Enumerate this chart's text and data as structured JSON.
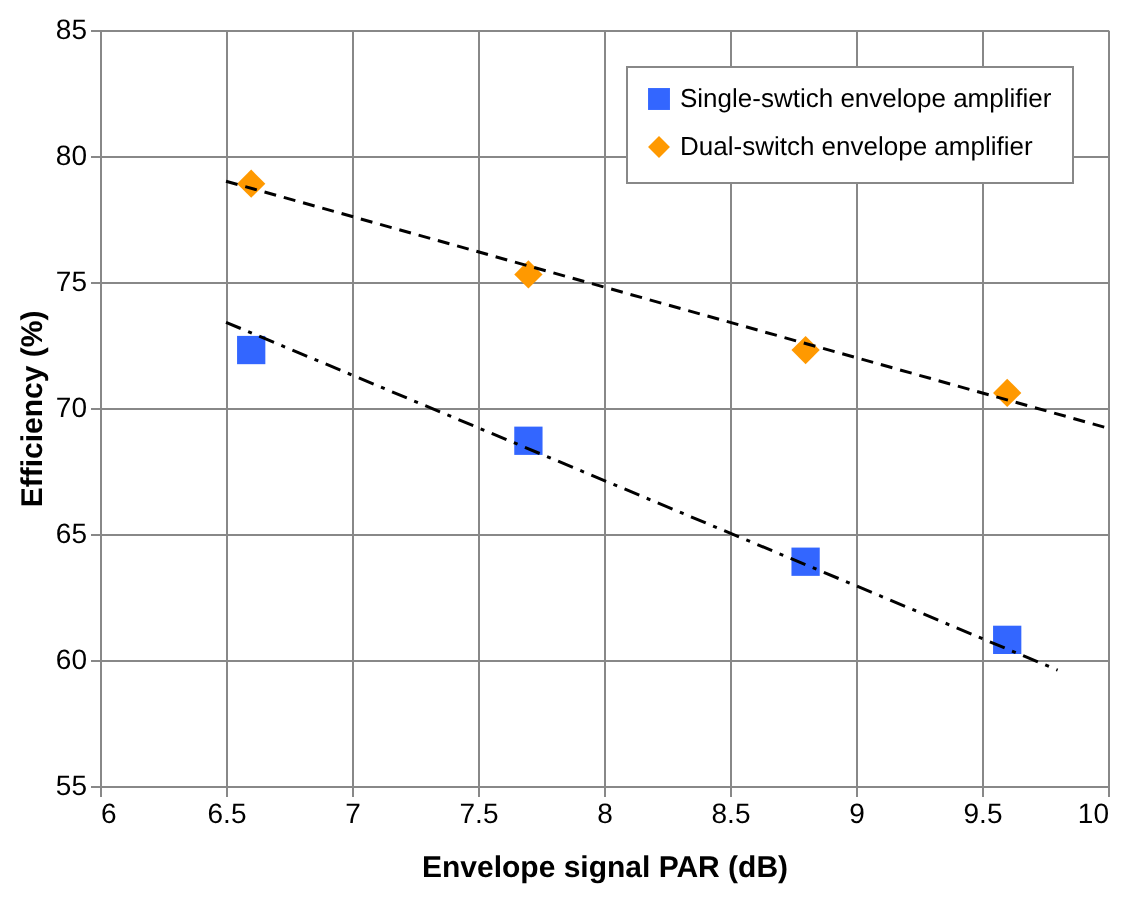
{
  "chart_data": {
    "type": "scatter",
    "xlabel": "Envelope signal PAR (dB)",
    "ylabel": "Efficiency (%)",
    "xlim": [
      6,
      10
    ],
    "xticks": [
      6,
      6.5,
      7,
      7.5,
      8,
      8.5,
      9,
      9.5,
      10
    ],
    "ylim": [
      55,
      85
    ],
    "yticks": [
      55,
      60,
      65,
      70,
      75,
      80,
      85
    ],
    "grid": true,
    "legend": "top right",
    "series": [
      {
        "name": "Single-swtich envelope amplifier",
        "type": "scatter",
        "marker": "square",
        "color": "#3366ff",
        "x": [
          6.6,
          7.7,
          8.8,
          9.6
        ],
        "values": [
          72.3,
          68.7,
          63.9,
          60.8
        ]
      },
      {
        "name": "Dual-switch envelope amplifier",
        "type": "scatter",
        "marker": "diamond",
        "color": "#ff9900",
        "x": [
          6.6,
          7.7,
          8.8,
          9.6
        ],
        "values": [
          78.9,
          75.3,
          72.3,
          70.6
        ]
      },
      {
        "type": "line",
        "line_style": "dashed",
        "color": "#000000",
        "x": [
          6.5,
          10
        ],
        "values": [
          79.0,
          69.2
        ]
      },
      {
        "type": "line",
        "line_style": "dashdot",
        "color": "#000000",
        "x": [
          6.5,
          9.8
        ],
        "values": [
          73.4,
          59.6
        ]
      }
    ]
  }
}
